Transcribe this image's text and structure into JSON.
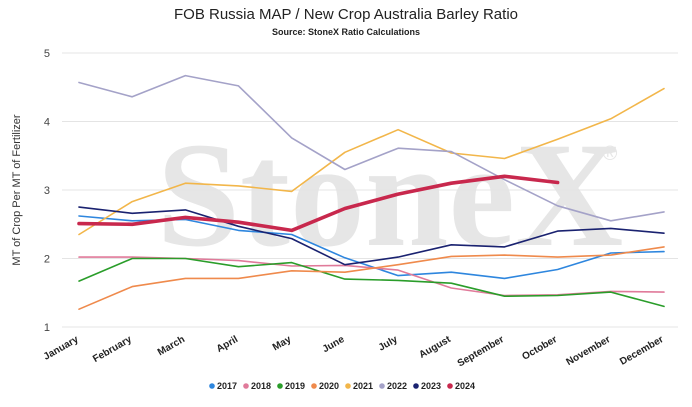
{
  "chart_data": {
    "type": "line",
    "title": "FOB Russia MAP / New Crop Australia Barley Ratio",
    "subtitle": "Source: StoneX Ratio Calculations",
    "ylabel": "MT of Crop Per MT of Fertilizer",
    "xlabel": "",
    "watermark": "StoneX",
    "watermark_mark": "®",
    "ylim": [
      1,
      5
    ],
    "yticks": [
      "1",
      "2",
      "3",
      "4",
      "5"
    ],
    "grid": "horizontal",
    "legend_position": "bottom",
    "categories": [
      "January",
      "February",
      "March",
      "April",
      "May",
      "June",
      "July",
      "August",
      "September",
      "October",
      "November",
      "December"
    ],
    "series": [
      {
        "name": "2017",
        "color": "#2e86de",
        "width": 1.6,
        "values": [
          2.62,
          2.55,
          2.57,
          2.41,
          2.35,
          2.01,
          1.75,
          1.8,
          1.71,
          1.84,
          2.08,
          2.1
        ]
      },
      {
        "name": "2018",
        "color": "#e07a9a",
        "width": 1.6,
        "values": [
          2.02,
          2.02,
          2.0,
          1.97,
          1.89,
          1.9,
          1.83,
          1.57,
          1.46,
          1.47,
          1.52,
          1.51
        ]
      },
      {
        "name": "2019",
        "color": "#2a9d2a",
        "width": 1.6,
        "values": [
          1.67,
          2.0,
          2.0,
          1.88,
          1.94,
          1.7,
          1.68,
          1.64,
          1.45,
          1.46,
          1.51,
          1.3
        ]
      },
      {
        "name": "2020",
        "color": "#ef8a4c",
        "width": 1.6,
        "values": [
          1.26,
          1.59,
          1.71,
          1.71,
          1.82,
          1.8,
          1.91,
          2.03,
          2.05,
          2.02,
          2.05,
          2.17
        ]
      },
      {
        "name": "2021",
        "color": "#f2b64a",
        "width": 1.6,
        "values": [
          2.35,
          2.83,
          3.1,
          3.06,
          2.98,
          3.55,
          3.88,
          3.54,
          3.46,
          3.74,
          4.04,
          4.48
        ]
      },
      {
        "name": "2022",
        "color": "#a4a2c8",
        "width": 1.6,
        "values": [
          4.57,
          4.36,
          4.67,
          4.52,
          3.76,
          3.3,
          3.61,
          3.56,
          3.15,
          2.77,
          2.55,
          2.68
        ]
      },
      {
        "name": "2023",
        "color": "#1a2270",
        "width": 1.6,
        "values": [
          2.75,
          2.66,
          2.71,
          2.47,
          2.29,
          1.91,
          2.02,
          2.2,
          2.17,
          2.4,
          2.44,
          2.37
        ]
      },
      {
        "name": "2024",
        "color": "#c8284d",
        "width": 3.6,
        "values": [
          2.51,
          2.5,
          2.6,
          2.53,
          2.41,
          2.73,
          2.94,
          3.1,
          3.2,
          3.11,
          null,
          null
        ]
      }
    ]
  }
}
